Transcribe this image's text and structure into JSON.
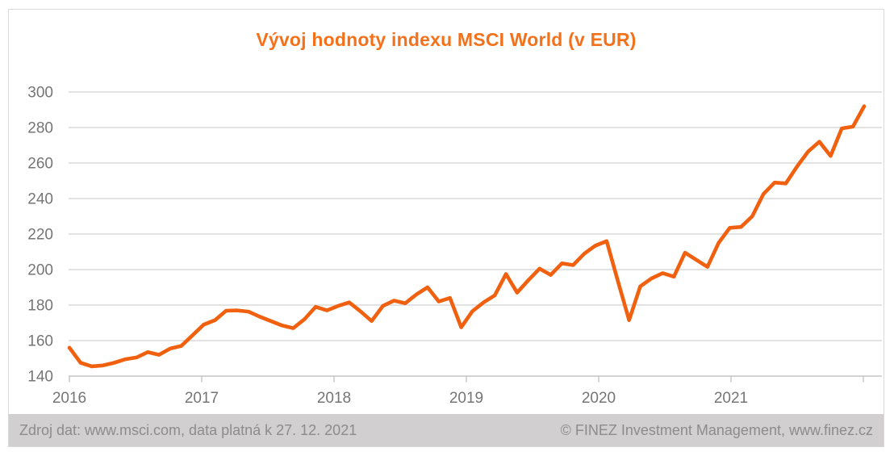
{
  "title": "Vývoj hodnoty indexu MSCI World (v EUR)",
  "footer": {
    "source": "Zdroj dat: www.msci.com, data platná k 27. 12. 2021",
    "copyright": "© FINEZ Investment Management, www.finez.cz"
  },
  "colors": {
    "title": "#F4711C",
    "line": "#F0600F",
    "grid": "#D9D9D9",
    "axis": "#C6C6C6",
    "tick_label": "#757575",
    "frame_border": "#D9D9D9",
    "footer_bg": "#D1CFCF",
    "footer_text": "#8D8B8B"
  },
  "chart_data": {
    "type": "line",
    "title": "Vývoj hodnoty indexu MSCI World (v EUR)",
    "x_unit": "month",
    "x_start": "2016-01",
    "x_end": "2021-12",
    "x_points": 72,
    "x_tick_labels": [
      "2016",
      "2017",
      "2018",
      "2019",
      "2020",
      "2021"
    ],
    "y_ticks": [
      140,
      160,
      180,
      200,
      220,
      240,
      260,
      280,
      300
    ],
    "ylim": [
      140,
      300
    ],
    "grid": "horizontal",
    "legend": "none",
    "values": [
      156,
      147.5,
      145.5,
      146,
      147.5,
      149.5,
      150.5,
      153.5,
      152,
      155.5,
      157,
      163,
      169,
      171.5,
      176.8,
      177,
      176.3,
      173.5,
      171,
      168.5,
      167,
      172,
      179,
      177,
      179.5,
      181.5,
      176.5,
      171,
      179.5,
      182.5,
      181,
      186,
      190,
      182,
      184,
      167.5,
      176.5,
      181.5,
      185.5,
      197.5,
      187,
      194,
      200.5,
      197,
      203.5,
      202.5,
      209,
      213.5,
      216,
      193.5,
      171.5,
      190.5,
      195,
      198,
      196,
      209.5,
      205.5,
      201.5,
      215,
      223.5,
      224,
      230,
      242.5,
      249,
      248.5,
      258,
      266.5,
      272,
      264,
      279.5,
      280.5,
      292
    ]
  }
}
